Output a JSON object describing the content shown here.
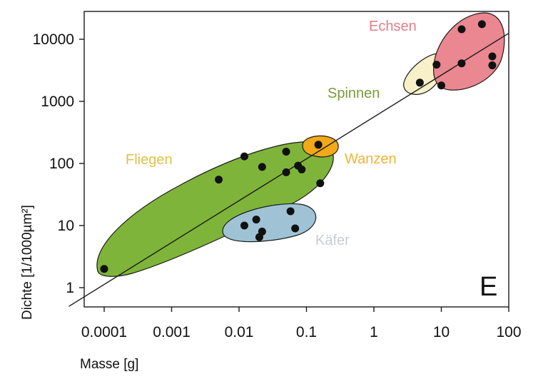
{
  "chart_data": {
    "type": "scatter",
    "xlabel": "Masse [g]",
    "ylabel": "Dichte [1/1000µm²]",
    "x_scale": "log",
    "y_scale": "log",
    "xlim": [
      3e-05,
      120
    ],
    "ylim": [
      0.45,
      45000
    ],
    "x_ticks": [
      0.0001,
      0.001,
      0.01,
      0.1,
      1,
      10,
      100
    ],
    "x_tick_labels": [
      "0.0001",
      "0.001",
      "0.01",
      "0.1",
      "1",
      "10",
      "100"
    ],
    "y_ticks": [
      1,
      10,
      100,
      1000,
      10000
    ],
    "y_tick_labels": [
      "1",
      "10",
      "100",
      "1000",
      "10000"
    ],
    "panel_letter": "E",
    "grid": false,
    "regression_line": {
      "x": [
        3e-05,
        100
      ],
      "y": [
        0.5,
        12500
      ]
    },
    "groups": [
      {
        "name": "Fliegen",
        "color": "#7fb43a",
        "label_color": "#e0c24a",
        "points": [
          [
            0.0001,
            2
          ],
          [
            0.005,
            55
          ],
          [
            0.012,
            130
          ],
          [
            0.022,
            88
          ],
          [
            0.05,
            155
          ],
          [
            0.05,
            72
          ],
          [
            0.075,
            92
          ],
          [
            0.085,
            80
          ],
          [
            0.16,
            48
          ]
        ]
      },
      {
        "name": "Käfer",
        "color": "#9fc3d4",
        "label_color": "#c8ccd2",
        "points": [
          [
            0.012,
            10
          ],
          [
            0.018,
            12.5
          ],
          [
            0.02,
            6.5
          ],
          [
            0.022,
            8
          ],
          [
            0.058,
            17
          ],
          [
            0.068,
            9
          ]
        ]
      },
      {
        "name": "Wanzen",
        "color": "#f2a818",
        "label_color": "#f2b338",
        "points": [
          [
            0.15,
            200
          ]
        ]
      },
      {
        "name": "Spinnen",
        "color": "#f7f0c8",
        "label_color": "#7a9a3c",
        "points": [
          [
            4.8,
            2000
          ],
          [
            8.5,
            3900
          ]
        ]
      },
      {
        "name": "Echsen",
        "color": "#ea8790",
        "label_color": "#e77d86",
        "points": [
          [
            10,
            1800
          ],
          [
            20,
            4100
          ],
          [
            20,
            14500
          ],
          [
            40,
            17500
          ],
          [
            57,
            5300
          ],
          [
            57,
            3800
          ]
        ]
      }
    ]
  }
}
